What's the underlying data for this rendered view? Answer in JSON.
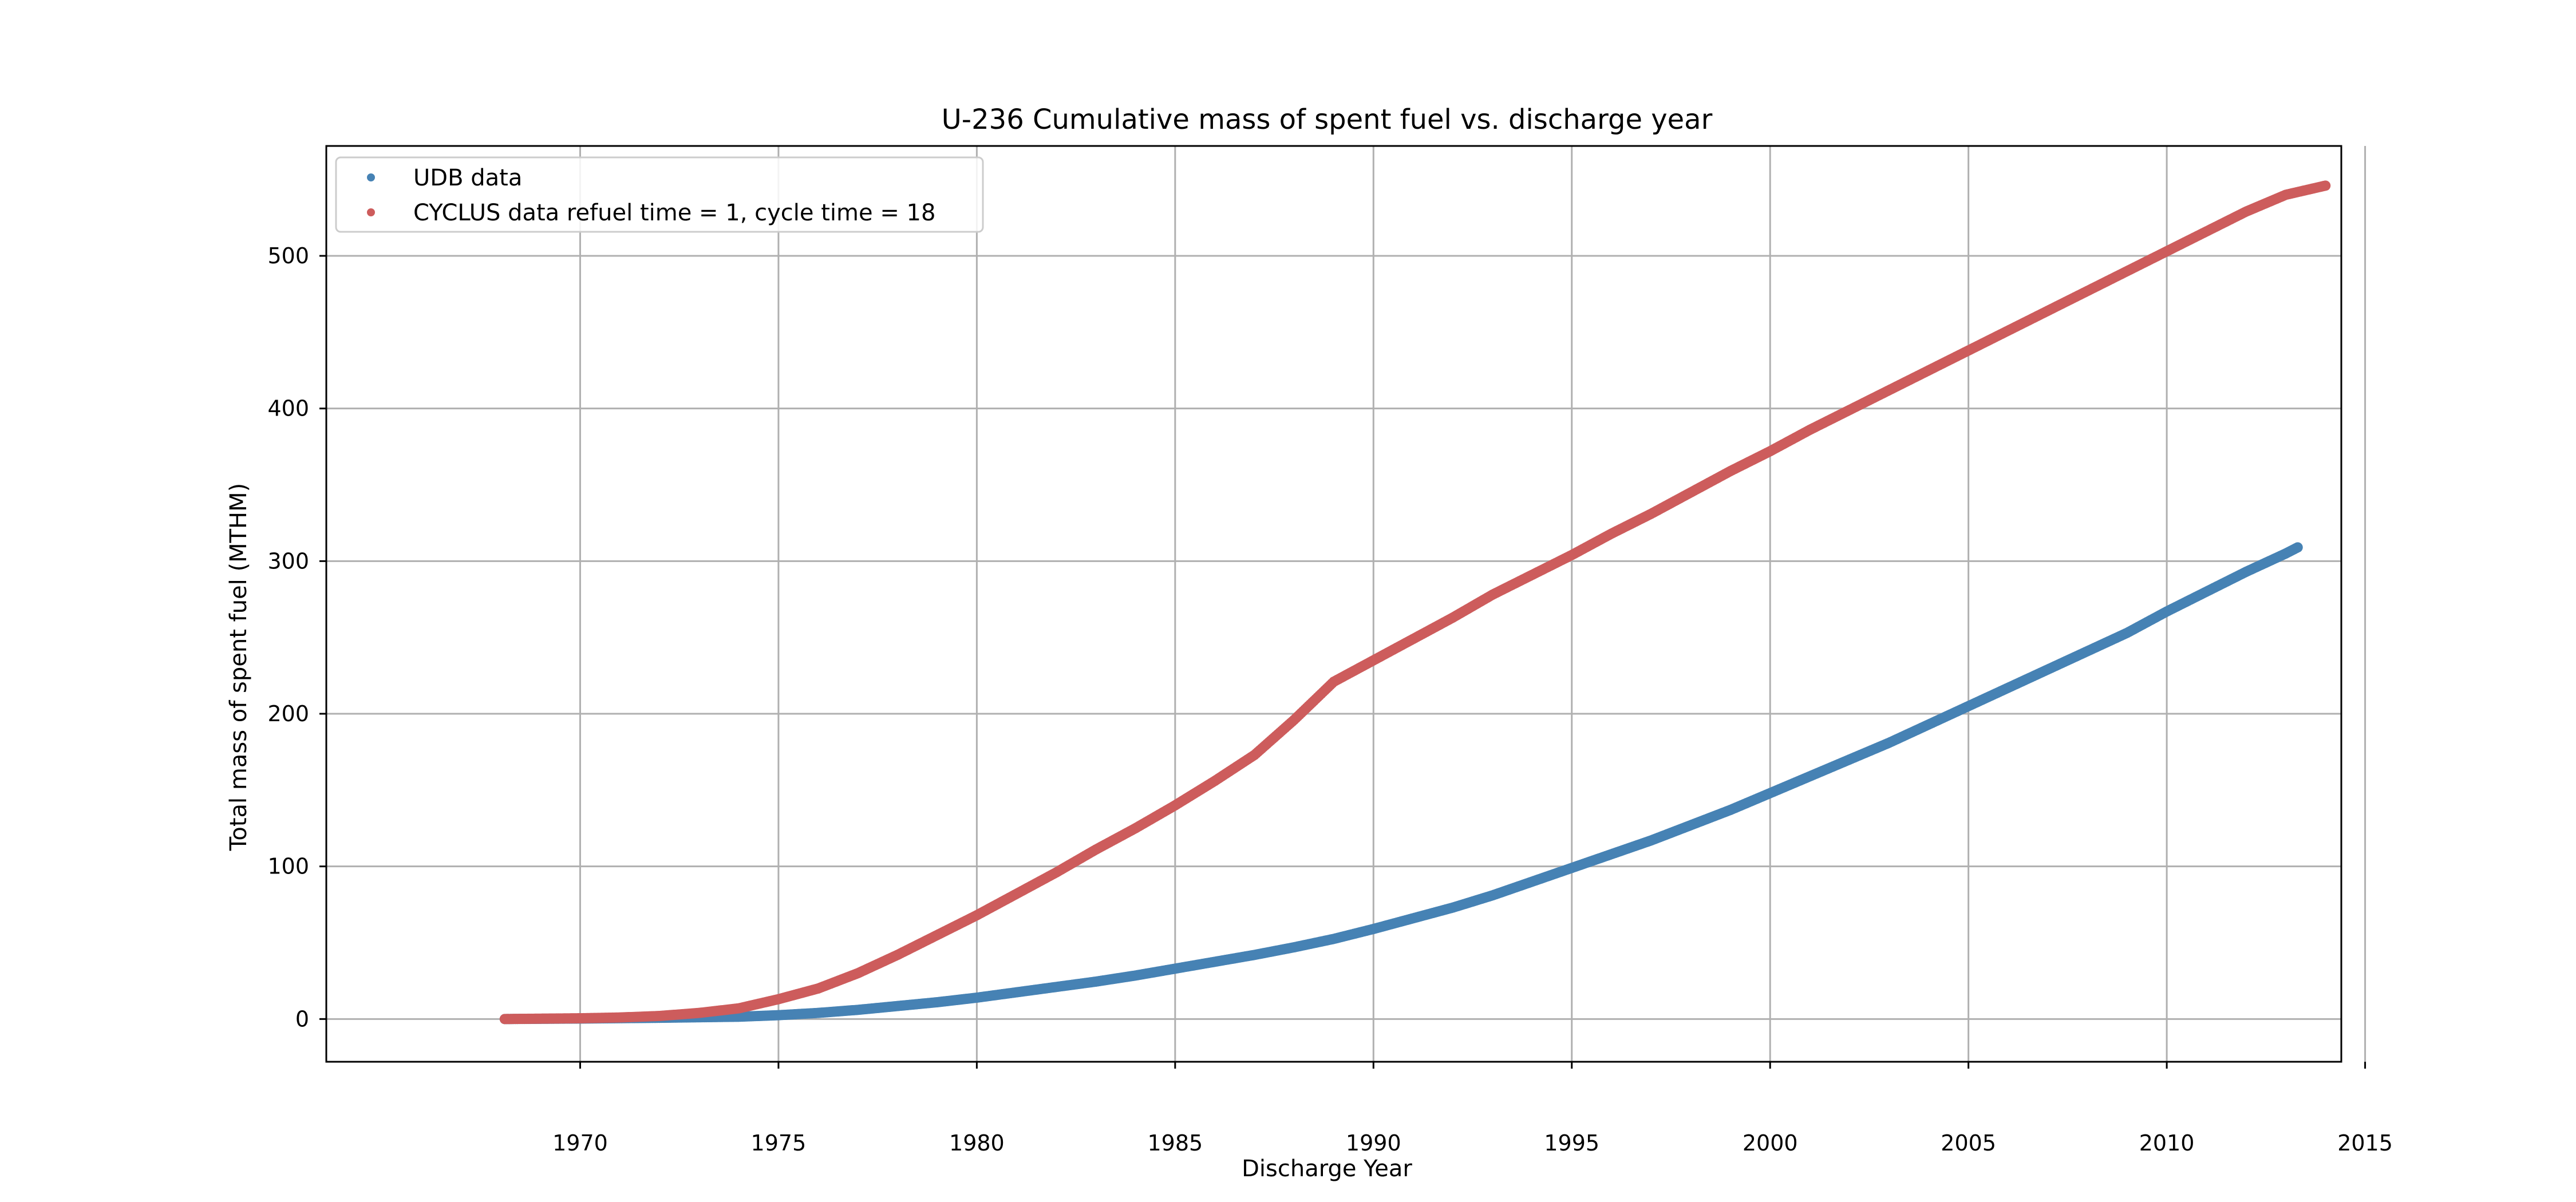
{
  "chart_data": {
    "type": "scatter",
    "title": "U-236 Cumulative mass of spent fuel vs. discharge year",
    "xlabel": "Discharge Year",
    "ylabel": "Total mass of spent fuel (MTHM)",
    "xlim": [
      1963.6,
      2014.4
    ],
    "ylim": [
      -28,
      572
    ],
    "xticks": [
      1970,
      1975,
      1980,
      1985,
      1990,
      1995,
      2000,
      2005,
      2010,
      2015
    ],
    "yticks": [
      0,
      100,
      200,
      300,
      400,
      500
    ],
    "grid": true,
    "legend_position": "top-left",
    "colors": {
      "udb": "#4682b4",
      "cyclus": "#cd5c5c"
    },
    "series": [
      {
        "name": "UDB data",
        "color": "#4682b4",
        "x": [
          1968.1,
          1970,
          1972,
          1974,
          1975,
          1976,
          1977,
          1978,
          1979,
          1980,
          1981,
          1982,
          1983,
          1984,
          1985,
          1986,
          1987,
          1988,
          1989,
          1990,
          1991,
          1992,
          1993,
          1994,
          1995,
          1996,
          1997,
          1998,
          1999,
          2000,
          2001,
          2002,
          2003,
          2004,
          2005,
          2006,
          2007,
          2008,
          2009,
          2010,
          2011,
          2012,
          2013,
          2013.3
        ],
        "y": [
          0,
          0.3,
          0.8,
          1.5,
          2.5,
          4,
          6,
          8.5,
          11,
          14,
          17.5,
          21,
          24.5,
          28.5,
          33,
          37.5,
          42,
          47,
          52.5,
          59,
          66,
          73,
          81,
          90,
          99,
          108,
          117,
          127,
          137,
          148,
          159,
          170,
          181,
          193,
          205,
          217,
          229,
          241,
          253,
          267,
          280,
          293,
          305,
          309
        ]
      },
      {
        "name": "CYCLUS data  refuel time = 1, cycle time = 18",
        "color": "#cd5c5c",
        "x": [
          1968.1,
          1970,
          1971,
          1972,
          1973,
          1974,
          1975,
          1976,
          1977,
          1978,
          1979,
          1980,
          1981,
          1982,
          1983,
          1984,
          1985,
          1986,
          1987,
          1988,
          1989,
          1990,
          1991,
          1992,
          1993,
          1994,
          1995,
          1996,
          1997,
          1998,
          1999,
          2000,
          2001,
          2002,
          2003,
          2004,
          2005,
          2006,
          2007,
          2008,
          2009,
          2010,
          2011,
          2012,
          2013,
          2014
        ],
        "y": [
          0,
          0.5,
          1,
          2,
          4,
          7,
          13,
          20,
          30,
          42,
          55,
          68,
          82,
          96,
          111,
          125,
          140,
          156,
          173,
          196,
          221,
          235,
          249,
          263,
          278,
          291,
          304,
          318,
          331,
          345,
          359,
          372,
          386,
          399,
          412,
          425,
          438,
          451,
          464,
          477,
          490,
          503,
          516,
          529,
          540,
          546
        ]
      }
    ]
  }
}
